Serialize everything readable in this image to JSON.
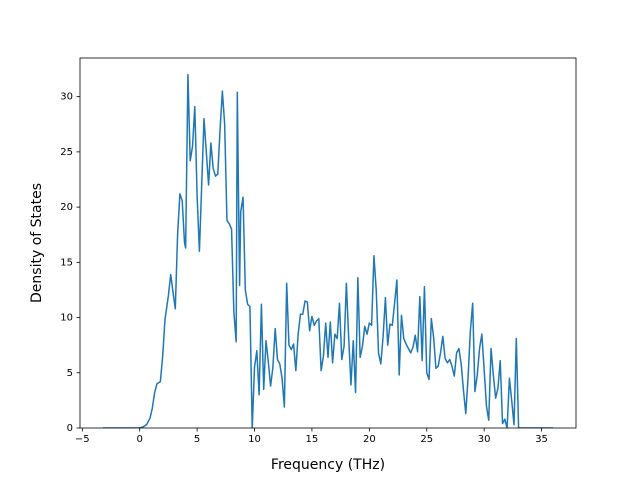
{
  "chart_data": {
    "type": "line",
    "x_label": "Frequency (THz)",
    "y_label": "Density of States",
    "xlim": [
      -5.2,
      38
    ],
    "ylim": [
      0,
      33.5
    ],
    "xticks": [
      {
        "value": -5,
        "label": "−5"
      },
      0,
      5,
      10,
      15,
      20,
      25,
      30,
      35
    ],
    "yticks": [
      0,
      5,
      10,
      15,
      20,
      25,
      30
    ],
    "series": [
      {
        "color": "#1f77b4",
        "x": [
          -3.2,
          -2,
          -1,
          0,
          0.3,
          0.6,
          0.9,
          1.1,
          1.3,
          1.5,
          1.8,
          2.0,
          2.2,
          2.5,
          2.7,
          2.9,
          3.1,
          3.3,
          3.5,
          3.7,
          3.9,
          4.0,
          4.2,
          4.4,
          4.6,
          4.8,
          5.0,
          5.2,
          5.4,
          5.6,
          5.8,
          6.0,
          6.2,
          6.4,
          6.6,
          6.8,
          7.0,
          7.2,
          7.4,
          7.6,
          7.8,
          8.0,
          8.2,
          8.4,
          8.5,
          8.7,
          8.8,
          9.0,
          9.2,
          9.4,
          9.6,
          9.8,
          10.0,
          10.2,
          10.4,
          10.6,
          10.8,
          11.0,
          11.2,
          11.4,
          11.6,
          11.8,
          12.0,
          12.2,
          12.4,
          12.6,
          12.8,
          13.0,
          13.2,
          13.4,
          13.6,
          13.8,
          14.0,
          14.2,
          14.4,
          14.6,
          14.8,
          15.0,
          15.2,
          15.4,
          15.6,
          15.8,
          16.0,
          16.2,
          16.4,
          16.6,
          16.8,
          17.0,
          17.2,
          17.4,
          17.6,
          17.8,
          18.0,
          18.2,
          18.4,
          18.6,
          18.8,
          19.0,
          19.2,
          19.4,
          19.6,
          19.8,
          20.0,
          20.2,
          20.4,
          20.6,
          20.8,
          21.0,
          21.2,
          21.4,
          21.6,
          21.8,
          22.0,
          22.2,
          22.4,
          22.6,
          22.8,
          23.0,
          23.2,
          23.4,
          23.6,
          23.8,
          24.0,
          24.2,
          24.4,
          24.6,
          24.8,
          25.0,
          25.2,
          25.4,
          25.6,
          25.8,
          26.0,
          26.2,
          26.4,
          26.6,
          26.8,
          27.0,
          27.2,
          27.4,
          27.6,
          27.8,
          28.0,
          28.2,
          28.4,
          28.6,
          28.8,
          29.0,
          29.2,
          29.4,
          29.6,
          29.8,
          30.0,
          30.2,
          30.4,
          30.6,
          30.8,
          31.0,
          31.2,
          31.4,
          31.6,
          31.8,
          32.0,
          32.2,
          32.4,
          32.6,
          32.8,
          33.0,
          34,
          35,
          36
        ],
        "values": [
          0,
          0,
          0,
          0,
          0.1,
          0.3,
          0.9,
          1.8,
          3.2,
          4.0,
          4.2,
          6.5,
          9.8,
          12,
          13.9,
          12.3,
          10.8,
          17.5,
          21.2,
          20.6,
          16.8,
          16.3,
          32,
          24.2,
          25.5,
          29.1,
          21,
          16,
          22,
          28,
          25,
          22,
          25.8,
          23.5,
          22.8,
          23,
          27,
          30.5,
          27.5,
          18.8,
          18.5,
          18,
          10.5,
          7.8,
          30.4,
          12.9,
          19.6,
          20.9,
          12.5,
          11.2,
          11,
          0,
          5.5,
          7,
          3,
          11.2,
          3.5,
          7.9,
          6,
          3.8,
          5.5,
          9,
          6.2,
          5.8,
          4.5,
          1.9,
          13.1,
          7.5,
          7.1,
          7.6,
          5.2,
          8.5,
          10.3,
          10.3,
          11.5,
          11.4,
          8.8,
          10.1,
          9.3,
          9.7,
          9.9,
          5.2,
          6.5,
          9.5,
          6.4,
          9.6,
          5.9,
          8.5,
          8.1,
          11.3,
          6.2,
          7.4,
          13.1,
          8.2,
          3.9,
          7.9,
          3.2,
          13.6,
          6.4,
          7.4,
          9.2,
          8.5,
          9.5,
          9.3,
          15.6,
          12.5,
          6.8,
          5.8,
          8.3,
          11.8,
          7.5,
          9.4,
          9.3,
          11.3,
          13.4,
          4.8,
          10.2,
          8.1,
          7.6,
          7.2,
          6.8,
          7.3,
          8.4,
          6.9,
          11.9,
          6.1,
          12.8,
          5,
          4.4,
          9.9,
          8.2,
          5.4,
          5.6,
          6.8,
          8.3,
          6.3,
          5.9,
          6.2,
          5.6,
          4.7,
          6.8,
          7.2,
          5.8,
          3.4,
          1.3,
          4.6,
          8.8,
          11.3,
          3.3,
          4.8,
          7.2,
          8.5,
          5.3,
          2,
          0.7,
          7.2,
          4.8,
          2.7,
          3.6,
          6.1,
          0.4,
          0.8,
          0,
          4.5,
          2.5,
          0.3,
          8.1,
          0,
          0,
          0,
          0
        ]
      }
    ]
  }
}
